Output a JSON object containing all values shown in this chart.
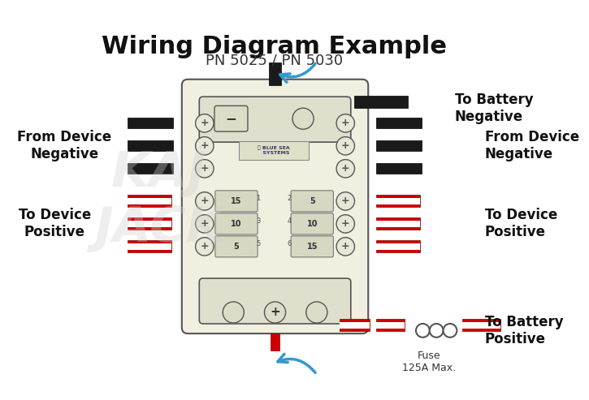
{
  "title": "Wiring Diagram Example",
  "subtitle": "PN 5025 / PN 5030",
  "title_fontsize": 22,
  "subtitle_fontsize": 13,
  "bg_color": "#ffffff",
  "label_fontsize": 12,
  "labels": {
    "top_right": "To Battery\nNegative",
    "left_neg": "From Device\nNegative",
    "right_neg": "From Device\nNegative",
    "left_pos": "To Device\nPositive",
    "right_pos": "To Device\nPositive",
    "bot_right": "To Battery\nPositive",
    "fuse": "Fuse\n125A Max."
  },
  "body_color": "#e8e8d0",
  "wire_black": "#1a1a1a",
  "wire_red": "#cc0000",
  "wire_white": "#ffffff",
  "outline_color": "#555555",
  "arrow_color": "#3399cc",
  "fuse_label_color": "#333333",
  "watermark_color": "#d0d0d0"
}
